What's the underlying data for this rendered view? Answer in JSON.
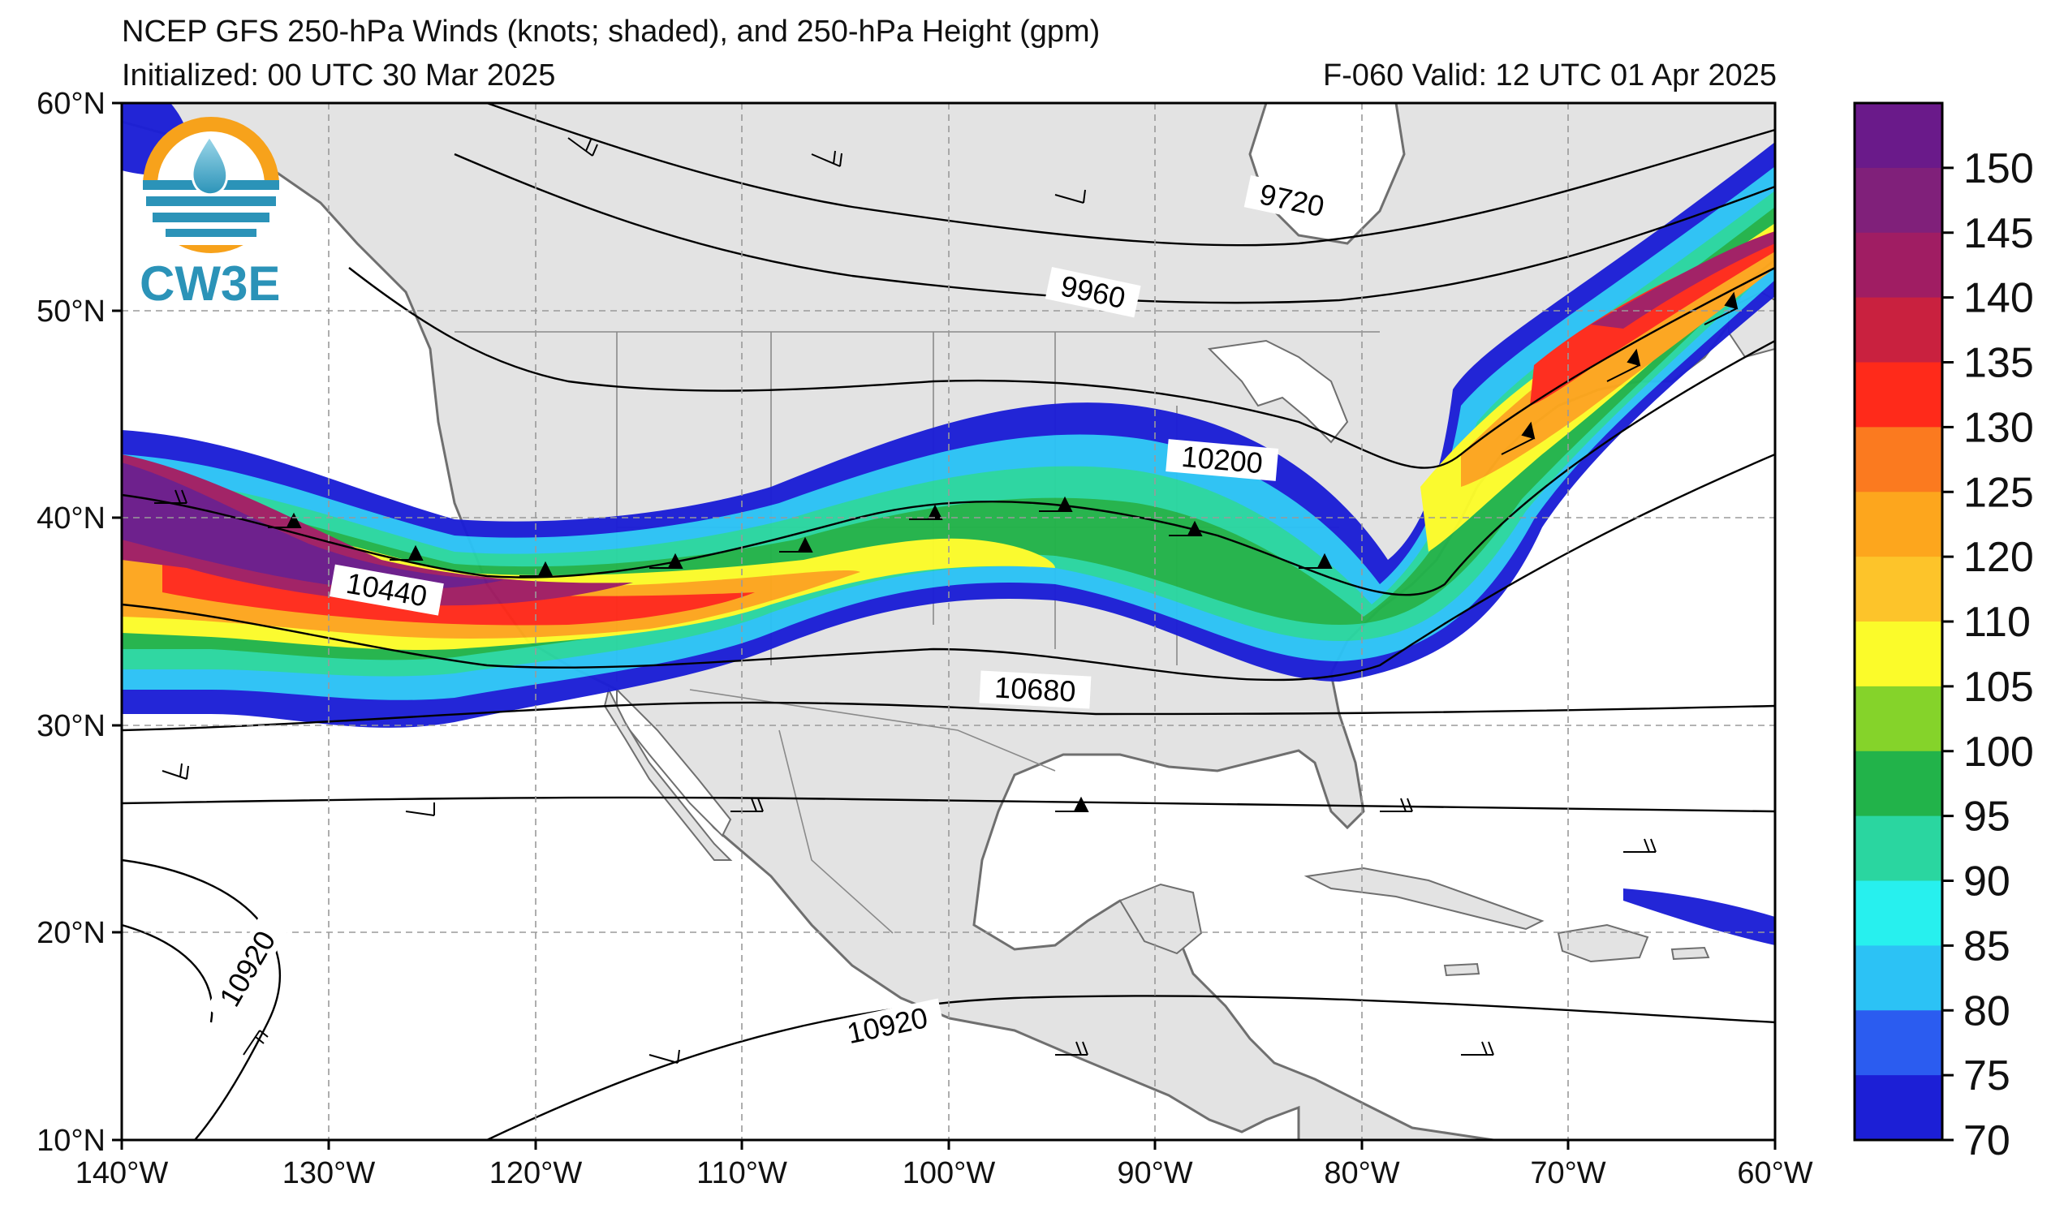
{
  "header": {
    "title": "NCEP GFS 250-hPa Winds (knots; shaded), and 250-hPa Height (gpm)",
    "initialized": "Initialized: 00 UTC 30 Mar 2025",
    "valid": "F-060  Valid: 12 UTC 01 Apr 2025"
  },
  "logo": {
    "text": "CW3E",
    "accent_color": "#f7a21b",
    "brand_color": "#2b93b8"
  },
  "map": {
    "extent": {
      "lon_min": -140,
      "lon_max": -60,
      "lat_min": 10,
      "lat_max": 60
    },
    "lat_labels": [
      "60°N",
      "50°N",
      "40°N",
      "30°N",
      "20°N",
      "10°N"
    ],
    "lon_labels": [
      "140°W",
      "130°W",
      "120°W",
      "110°W",
      "100°W",
      "90°W",
      "80°W",
      "70°W",
      "60°W"
    ],
    "land_color": "#e3e3e3",
    "ocean_color": "#ffffff",
    "contour_labels": [
      "9720",
      "9960",
      "10200",
      "10440",
      "10680",
      "10920",
      "10920"
    ]
  },
  "colorbar": {
    "labels": [
      "150",
      "145",
      "140",
      "135",
      "130",
      "125",
      "120",
      "110",
      "105",
      "100",
      "95",
      "90",
      "85",
      "80",
      "75",
      "70"
    ],
    "colors": [
      "#6a1a8a",
      "#80207a",
      "#a01d63",
      "#c9213f",
      "#ff2a1a",
      "#fb7a1f",
      "#fda61d",
      "#fdc42a",
      "#fbfb2a",
      "#85d32a",
      "#22b34a",
      "#2ad6a0",
      "#27f0ee",
      "#2cc2f5",
      "#2b5cf0",
      "#1c1fd6"
    ]
  },
  "jet_speed_levels_kt": [
    70,
    80,
    90,
    100,
    110,
    120,
    130,
    140,
    150
  ]
}
